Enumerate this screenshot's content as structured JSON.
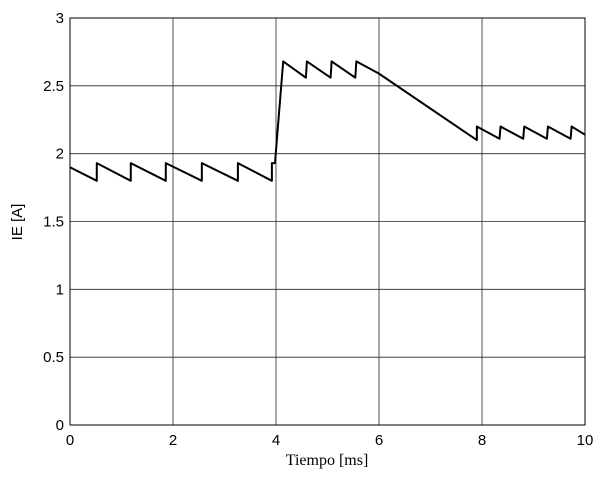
{
  "chart_data": {
    "type": "line",
    "x_label": "Tiempo [ms]",
    "y_label": "IE [A]",
    "x": [
      0,
      0.52,
      0.52,
      1.18,
      1.18,
      1.86,
      1.86,
      2.56,
      2.56,
      3.26,
      3.26,
      3.92,
      3.92,
      3.98,
      4.14,
      4.58,
      4.6,
      5.06,
      5.08,
      5.54,
      5.56,
      6,
      7.9,
      7.9,
      8.34,
      8.36,
      8.8,
      8.82,
      9.26,
      9.28,
      9.72,
      9.74,
      10
    ],
    "series": [
      {
        "color": "#000000",
        "values": [
          1.9,
          1.8,
          1.93,
          1.8,
          1.93,
          1.8,
          1.93,
          1.8,
          1.93,
          1.8,
          1.93,
          1.8,
          1.93,
          1.93,
          2.68,
          2.56,
          2.68,
          2.56,
          2.68,
          2.56,
          2.68,
          2.59,
          2.1,
          2.2,
          2.11,
          2.2,
          2.11,
          2.2,
          2.11,
          2.2,
          2.11,
          2.2,
          2.14
        ]
      }
    ],
    "xlim": [
      0,
      10
    ],
    "xticks": [
      0,
      2,
      4,
      6,
      8,
      10
    ],
    "ylim": [
      0,
      3
    ],
    "yticks": [
      0,
      0.5,
      1,
      1.5,
      2,
      2.5,
      3
    ],
    "grid": true
  }
}
